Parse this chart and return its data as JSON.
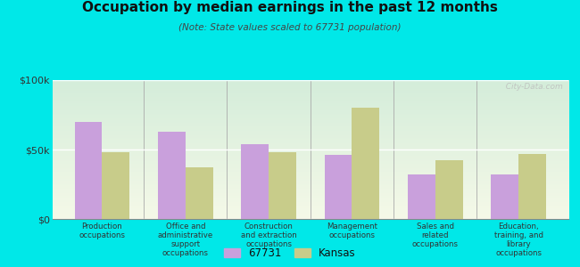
{
  "title": "Occupation by median earnings in the past 12 months",
  "subtitle": "(Note: State values scaled to 67731 population)",
  "categories": [
    "Production\noccupations",
    "Office and\nadministrative\nsupport\noccupations",
    "Construction\nand extraction\noccupations",
    "Management\noccupations",
    "Sales and\nrelated\noccupations",
    "Education,\ntraining, and\nlibrary\noccupations"
  ],
  "values_67731": [
    70000,
    63000,
    54000,
    46000,
    32000,
    32000
  ],
  "values_kansas": [
    48000,
    37000,
    48000,
    80000,
    42000,
    47000
  ],
  "color_67731": "#c9a0dc",
  "color_kansas": "#c8cc8a",
  "ylim": [
    0,
    100000
  ],
  "yticks": [
    0,
    50000,
    100000
  ],
  "ytick_labels": [
    "$0",
    "$50k",
    "$100k"
  ],
  "background_color": "#00e8e8",
  "legend_label_67731": "67731",
  "legend_label_kansas": "Kansas",
  "watermark": "  City-Data.com"
}
